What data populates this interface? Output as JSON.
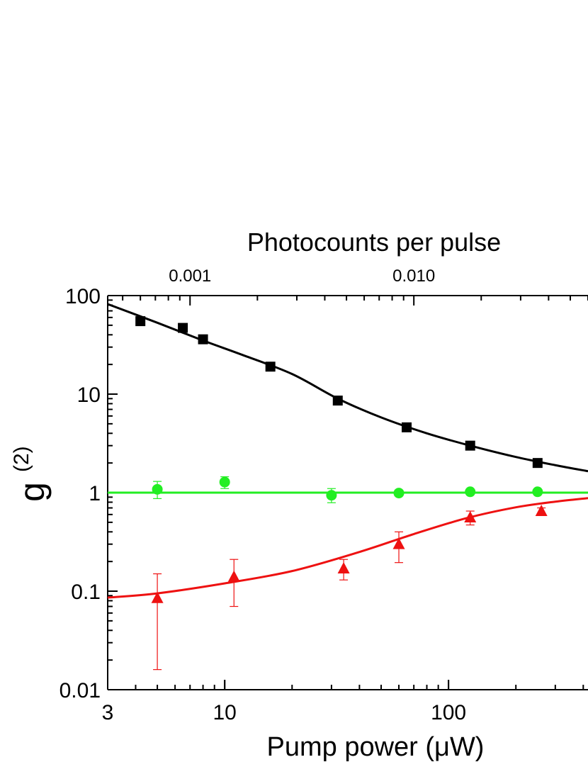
{
  "chart_data": {
    "type": "scatter",
    "title": "",
    "xlabel": "Pump power (μW)",
    "ylabel": "g",
    "ylabel_superscript": "(2)",
    "top_axis_label": "Photocounts per pulse",
    "x_scale": "log",
    "y_scale": "log",
    "xlim": [
      3,
      420
    ],
    "ylim": [
      0.01,
      100
    ],
    "x_ticks": [
      3,
      10,
      100
    ],
    "x_tick_labels": [
      "3",
      "10",
      "100"
    ],
    "y_ticks": [
      0.01,
      0.1,
      1,
      10,
      100
    ],
    "y_tick_labels": [
      "0.01",
      "0.1",
      "1",
      "10",
      "100"
    ],
    "top_ticks": [
      {
        "label": "0.001",
        "at_pump_power": 7.0
      },
      {
        "label": "0.010",
        "at_pump_power": 70
      }
    ],
    "series": [
      {
        "color": "#000000",
        "marker": "square",
        "points": [
          {
            "x": 4.2,
            "y": 55
          },
          {
            "x": 6.5,
            "y": 47
          },
          {
            "x": 8.0,
            "y": 36
          },
          {
            "x": 16,
            "y": 19
          },
          {
            "x": 32,
            "y": 8.6
          },
          {
            "x": 65,
            "y": 4.6
          },
          {
            "x": 125,
            "y": 3.0
          },
          {
            "x": 250,
            "y": 2.0
          }
        ],
        "fit": [
          {
            "x": 3,
            "y": 82
          },
          {
            "x": 5,
            "y": 53
          },
          {
            "x": 8,
            "y": 35
          },
          {
            "x": 12,
            "y": 25
          },
          {
            "x": 20,
            "y": 16
          },
          {
            "x": 32,
            "y": 9.0
          },
          {
            "x": 50,
            "y": 5.8
          },
          {
            "x": 80,
            "y": 4.0
          },
          {
            "x": 125,
            "y": 3.0
          },
          {
            "x": 200,
            "y": 2.3
          },
          {
            "x": 300,
            "y": 1.9
          },
          {
            "x": 420,
            "y": 1.65
          }
        ]
      },
      {
        "color": "#22ee22",
        "marker": "circle",
        "points": [
          {
            "x": 5,
            "y": 1.08,
            "err_low": 0.87,
            "err_high": 1.3
          },
          {
            "x": 10,
            "y": 1.28,
            "err_low": 1.1,
            "err_high": 1.45
          },
          {
            "x": 30,
            "y": 0.94,
            "err_low": 0.79,
            "err_high": 1.1
          },
          {
            "x": 60,
            "y": 0.99
          },
          {
            "x": 125,
            "y": 1.02
          },
          {
            "x": 250,
            "y": 1.02
          }
        ],
        "fit": [
          {
            "x": 3,
            "y": 1.0
          },
          {
            "x": 420,
            "y": 1.0
          }
        ]
      },
      {
        "color": "#ee1111",
        "marker": "triangle",
        "points": [
          {
            "x": 5,
            "y": 0.085,
            "err_low": 0.016,
            "err_high": 0.15
          },
          {
            "x": 11,
            "y": 0.14,
            "err_low": 0.07,
            "err_high": 0.21
          },
          {
            "x": 34,
            "y": 0.17,
            "err_low": 0.13,
            "err_high": 0.21
          },
          {
            "x": 60,
            "y": 0.3,
            "err_low": 0.195,
            "err_high": 0.4
          },
          {
            "x": 125,
            "y": 0.56,
            "err_low": 0.47,
            "err_high": 0.65
          },
          {
            "x": 260,
            "y": 0.65,
            "err_low": 0.6,
            "err_high": 0.7
          }
        ],
        "fit": [
          {
            "x": 3,
            "y": 0.086
          },
          {
            "x": 5,
            "y": 0.095
          },
          {
            "x": 10,
            "y": 0.12
          },
          {
            "x": 20,
            "y": 0.16
          },
          {
            "x": 40,
            "y": 0.25
          },
          {
            "x": 70,
            "y": 0.38
          },
          {
            "x": 120,
            "y": 0.55
          },
          {
            "x": 200,
            "y": 0.71
          },
          {
            "x": 300,
            "y": 0.81
          },
          {
            "x": 420,
            "y": 0.88
          }
        ]
      }
    ]
  }
}
